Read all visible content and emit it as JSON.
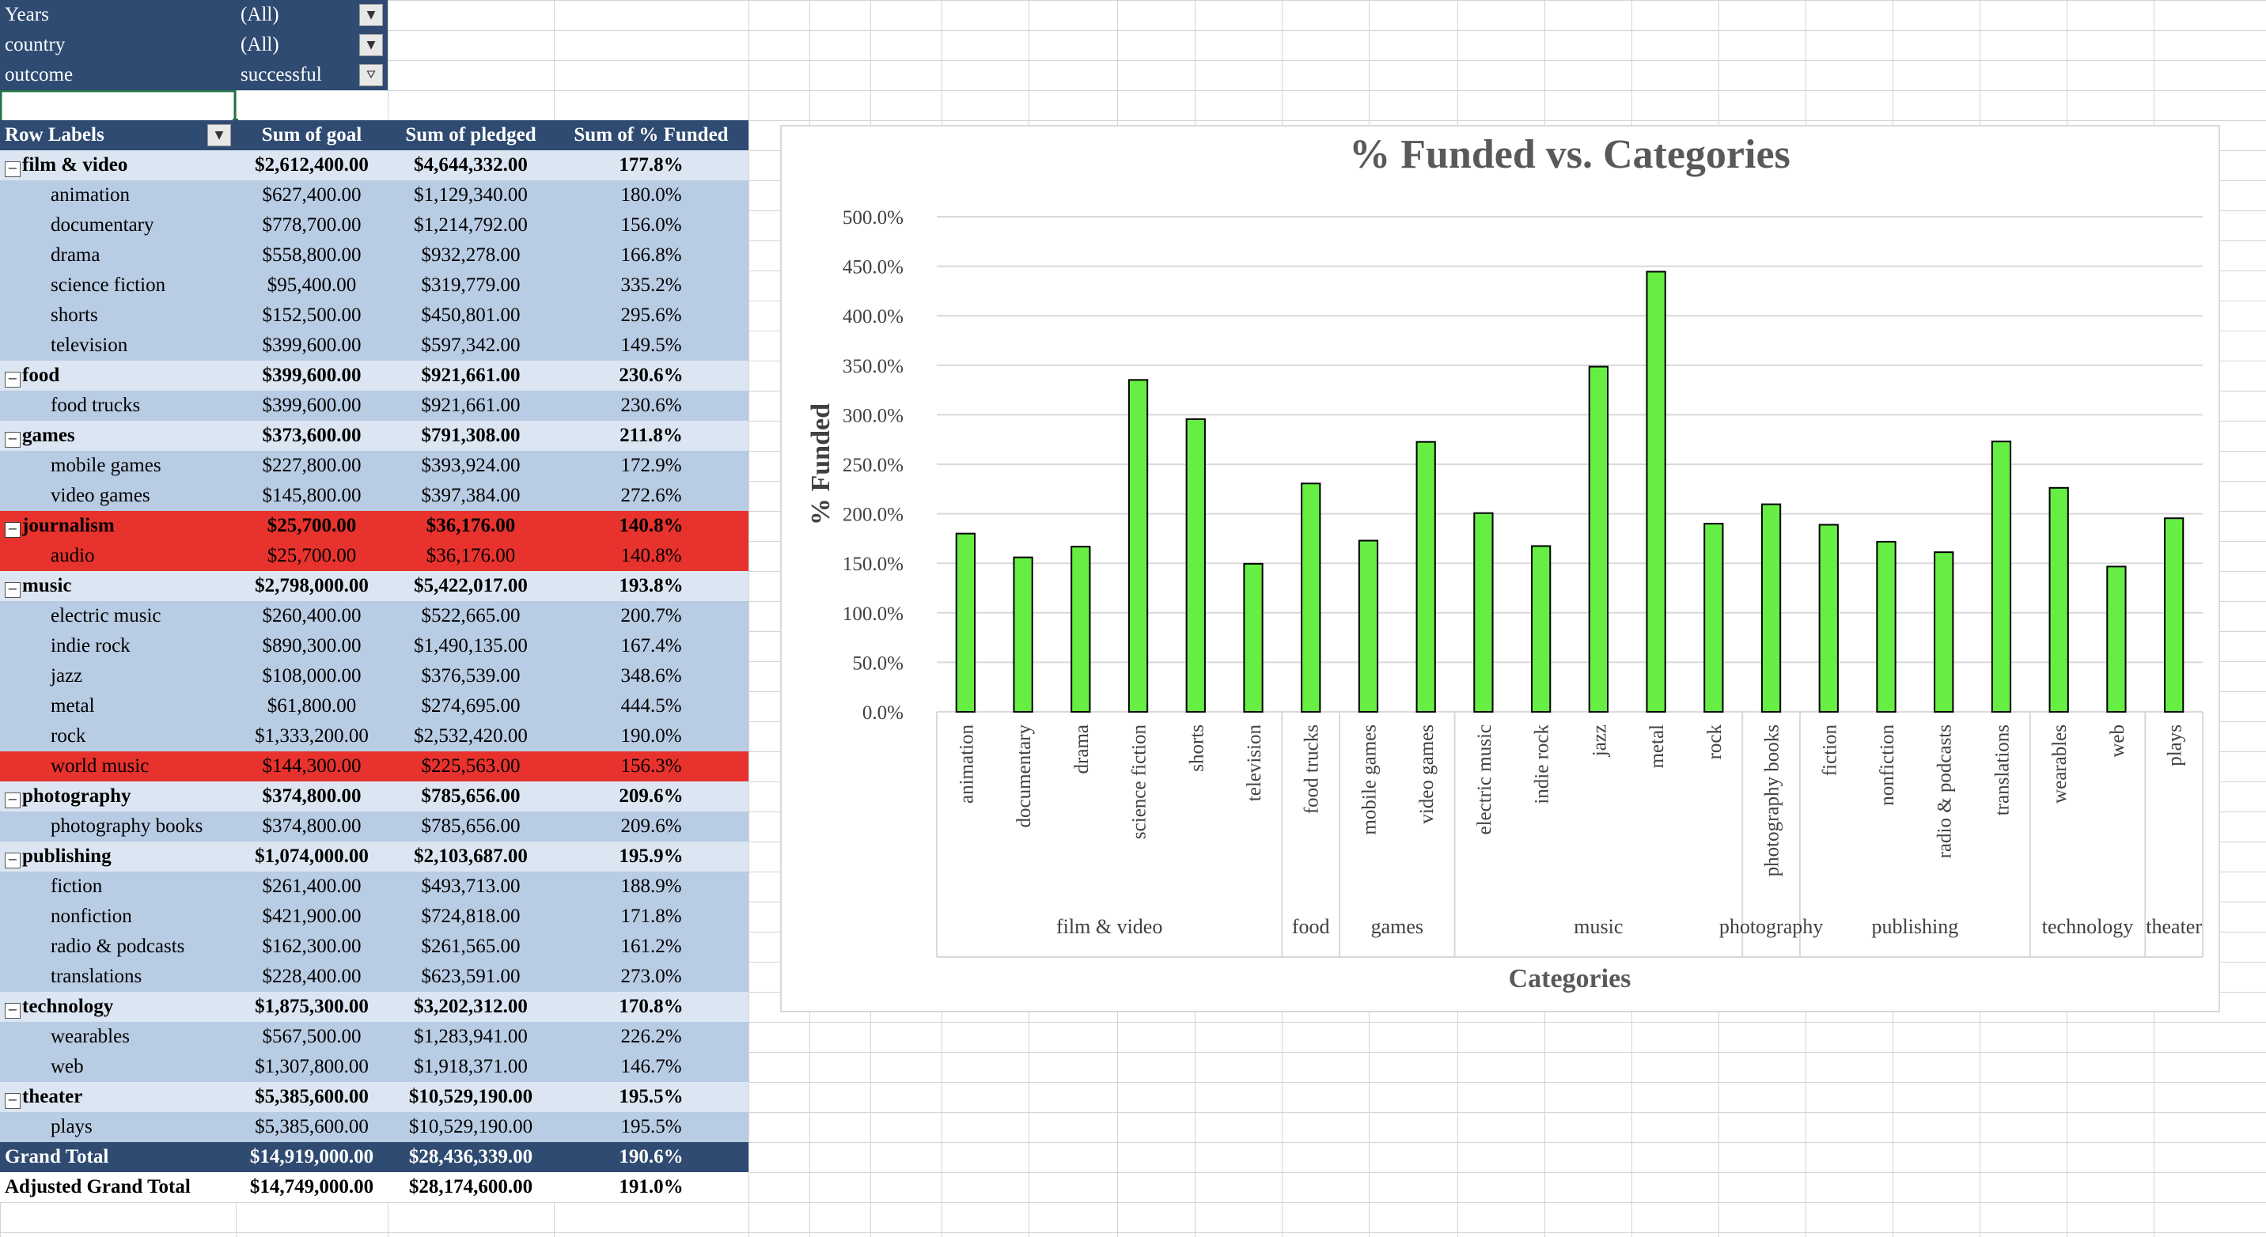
{
  "app": "Spreadsheet",
  "filters": [
    {
      "label": "Years",
      "value": "(All)",
      "icon": "dropdown-arrow-icon"
    },
    {
      "label": "country",
      "value": "(All)",
      "icon": "dropdown-arrow-icon"
    },
    {
      "label": "outcome",
      "value": "successful",
      "icon": "filter-applied-icon"
    }
  ],
  "pivot": {
    "headers": [
      "Row Labels",
      "Sum of goal",
      "Sum of pledged",
      "Sum of % Funded"
    ],
    "rows": [
      {
        "label": "film & video",
        "goal": "$2,612,400.00",
        "pledged": "$4,644,332.00",
        "funded": "177.8%",
        "level": "category",
        "highlight": false
      },
      {
        "label": "animation",
        "goal": "$627,400.00",
        "pledged": "$1,129,340.00",
        "funded": "180.0%",
        "level": "sub",
        "highlight": false
      },
      {
        "label": "documentary",
        "goal": "$778,700.00",
        "pledged": "$1,214,792.00",
        "funded": "156.0%",
        "level": "sub",
        "highlight": false
      },
      {
        "label": "drama",
        "goal": "$558,800.00",
        "pledged": "$932,278.00",
        "funded": "166.8%",
        "level": "sub",
        "highlight": false
      },
      {
        "label": "science fiction",
        "goal": "$95,400.00",
        "pledged": "$319,779.00",
        "funded": "335.2%",
        "level": "sub",
        "highlight": false
      },
      {
        "label": "shorts",
        "goal": "$152,500.00",
        "pledged": "$450,801.00",
        "funded": "295.6%",
        "level": "sub",
        "highlight": false
      },
      {
        "label": "television",
        "goal": "$399,600.00",
        "pledged": "$597,342.00",
        "funded": "149.5%",
        "level": "sub",
        "highlight": false
      },
      {
        "label": "food",
        "goal": "$399,600.00",
        "pledged": "$921,661.00",
        "funded": "230.6%",
        "level": "category",
        "highlight": false
      },
      {
        "label": "food trucks",
        "goal": "$399,600.00",
        "pledged": "$921,661.00",
        "funded": "230.6%",
        "level": "sub",
        "highlight": false
      },
      {
        "label": "games",
        "goal": "$373,600.00",
        "pledged": "$791,308.00",
        "funded": "211.8%",
        "level": "category",
        "highlight": false
      },
      {
        "label": "mobile games",
        "goal": "$227,800.00",
        "pledged": "$393,924.00",
        "funded": "172.9%",
        "level": "sub",
        "highlight": false
      },
      {
        "label": "video games",
        "goal": "$145,800.00",
        "pledged": "$397,384.00",
        "funded": "272.6%",
        "level": "sub",
        "highlight": false
      },
      {
        "label": "journalism",
        "goal": "$25,700.00",
        "pledged": "$36,176.00",
        "funded": "140.8%",
        "level": "category",
        "highlight": true
      },
      {
        "label": "audio",
        "goal": "$25,700.00",
        "pledged": "$36,176.00",
        "funded": "140.8%",
        "level": "sub",
        "highlight": true
      },
      {
        "label": "music",
        "goal": "$2,798,000.00",
        "pledged": "$5,422,017.00",
        "funded": "193.8%",
        "level": "category",
        "highlight": false
      },
      {
        "label": "electric music",
        "goal": "$260,400.00",
        "pledged": "$522,665.00",
        "funded": "200.7%",
        "level": "sub",
        "highlight": false
      },
      {
        "label": "indie rock",
        "goal": "$890,300.00",
        "pledged": "$1,490,135.00",
        "funded": "167.4%",
        "level": "sub",
        "highlight": false
      },
      {
        "label": "jazz",
        "goal": "$108,000.00",
        "pledged": "$376,539.00",
        "funded": "348.6%",
        "level": "sub",
        "highlight": false
      },
      {
        "label": "metal",
        "goal": "$61,800.00",
        "pledged": "$274,695.00",
        "funded": "444.5%",
        "level": "sub",
        "highlight": false
      },
      {
        "label": "rock",
        "goal": "$1,333,200.00",
        "pledged": "$2,532,420.00",
        "funded": "190.0%",
        "level": "sub",
        "highlight": false
      },
      {
        "label": "world music",
        "goal": "$144,300.00",
        "pledged": "$225,563.00",
        "funded": "156.3%",
        "level": "sub",
        "highlight": true
      },
      {
        "label": "photography",
        "goal": "$374,800.00",
        "pledged": "$785,656.00",
        "funded": "209.6%",
        "level": "category",
        "highlight": false
      },
      {
        "label": "photography books",
        "goal": "$374,800.00",
        "pledged": "$785,656.00",
        "funded": "209.6%",
        "level": "sub",
        "highlight": false
      },
      {
        "label": "publishing",
        "goal": "$1,074,000.00",
        "pledged": "$2,103,687.00",
        "funded": "195.9%",
        "level": "category",
        "highlight": false
      },
      {
        "label": "fiction",
        "goal": "$261,400.00",
        "pledged": "$493,713.00",
        "funded": "188.9%",
        "level": "sub",
        "highlight": false
      },
      {
        "label": "nonfiction",
        "goal": "$421,900.00",
        "pledged": "$724,818.00",
        "funded": "171.8%",
        "level": "sub",
        "highlight": false
      },
      {
        "label": "radio & podcasts",
        "goal": "$162,300.00",
        "pledged": "$261,565.00",
        "funded": "161.2%",
        "level": "sub",
        "highlight": false
      },
      {
        "label": "translations",
        "goal": "$228,400.00",
        "pledged": "$623,591.00",
        "funded": "273.0%",
        "level": "sub",
        "highlight": false
      },
      {
        "label": "technology",
        "goal": "$1,875,300.00",
        "pledged": "$3,202,312.00",
        "funded": "170.8%",
        "level": "category",
        "highlight": false
      },
      {
        "label": "wearables",
        "goal": "$567,500.00",
        "pledged": "$1,283,941.00",
        "funded": "226.2%",
        "level": "sub",
        "highlight": false
      },
      {
        "label": "web",
        "goal": "$1,307,800.00",
        "pledged": "$1,918,371.00",
        "funded": "146.7%",
        "level": "sub",
        "highlight": false
      },
      {
        "label": "theater",
        "goal": "$5,385,600.00",
        "pledged": "$10,529,190.00",
        "funded": "195.5%",
        "level": "category",
        "highlight": false
      },
      {
        "label": "plays",
        "goal": "$5,385,600.00",
        "pledged": "$10,529,190.00",
        "funded": "195.5%",
        "level": "sub",
        "highlight": false
      }
    ],
    "grand_total": {
      "label": "Grand Total",
      "goal": "$14,919,000.00",
      "pledged": "$28,436,339.00",
      "funded": "190.6%"
    },
    "adjusted_total": {
      "label": "Adjusted Grand Total",
      "goal": "$14,749,000.00",
      "pledged": "$28,174,600.00",
      "funded": "191.0%"
    },
    "collapse_icon": "minus-box-icon",
    "collapse_glyph": "−"
  },
  "colors": {
    "header_fill": "#2f4b72",
    "category_fill": "#dce6f2",
    "subcategory_fill": "#b8cce4",
    "highlight_fill": "#e8322d",
    "bar_fill": "#66ee44",
    "bar_stroke": "#000000",
    "gridline": "#d9d9d9"
  },
  "chart_data": {
    "type": "bar",
    "title": "% Funded vs. Categories",
    "xlabel": "Categories",
    "ylabel": "% Funded",
    "ylim": [
      0,
      500
    ],
    "yticks": [
      "0.0%",
      "50.0%",
      "100.0%",
      "150.0%",
      "200.0%",
      "250.0%",
      "300.0%",
      "350.0%",
      "400.0%",
      "450.0%",
      "500.0%"
    ],
    "grid": true,
    "legend": "none",
    "groups": [
      {
        "name": "film & video",
        "categories": [
          "animation",
          "documentary",
          "drama",
          "science fiction",
          "shorts",
          "television"
        ],
        "values": [
          180.0,
          156.0,
          166.8,
          335.2,
          295.6,
          149.5
        ]
      },
      {
        "name": "food",
        "categories": [
          "food trucks"
        ],
        "values": [
          230.6
        ]
      },
      {
        "name": "games",
        "categories": [
          "mobile games",
          "video games"
        ],
        "values": [
          172.9,
          272.6
        ]
      },
      {
        "name": "music",
        "categories": [
          "electric music",
          "indie rock",
          "jazz",
          "metal",
          "rock"
        ],
        "values": [
          200.7,
          167.4,
          348.6,
          444.5,
          190.0
        ]
      },
      {
        "name": "photography",
        "categories": [
          "photography books"
        ],
        "values": [
          209.6
        ]
      },
      {
        "name": "publishing",
        "categories": [
          "fiction",
          "nonfiction",
          "radio & podcasts",
          "translations"
        ],
        "values": [
          188.9,
          171.8,
          161.2,
          273.0
        ]
      },
      {
        "name": "technology",
        "categories": [
          "wearables",
          "web"
        ],
        "values": [
          226.2,
          146.7
        ]
      },
      {
        "name": "theater",
        "categories": [
          "plays"
        ],
        "values": [
          195.5
        ]
      }
    ]
  }
}
